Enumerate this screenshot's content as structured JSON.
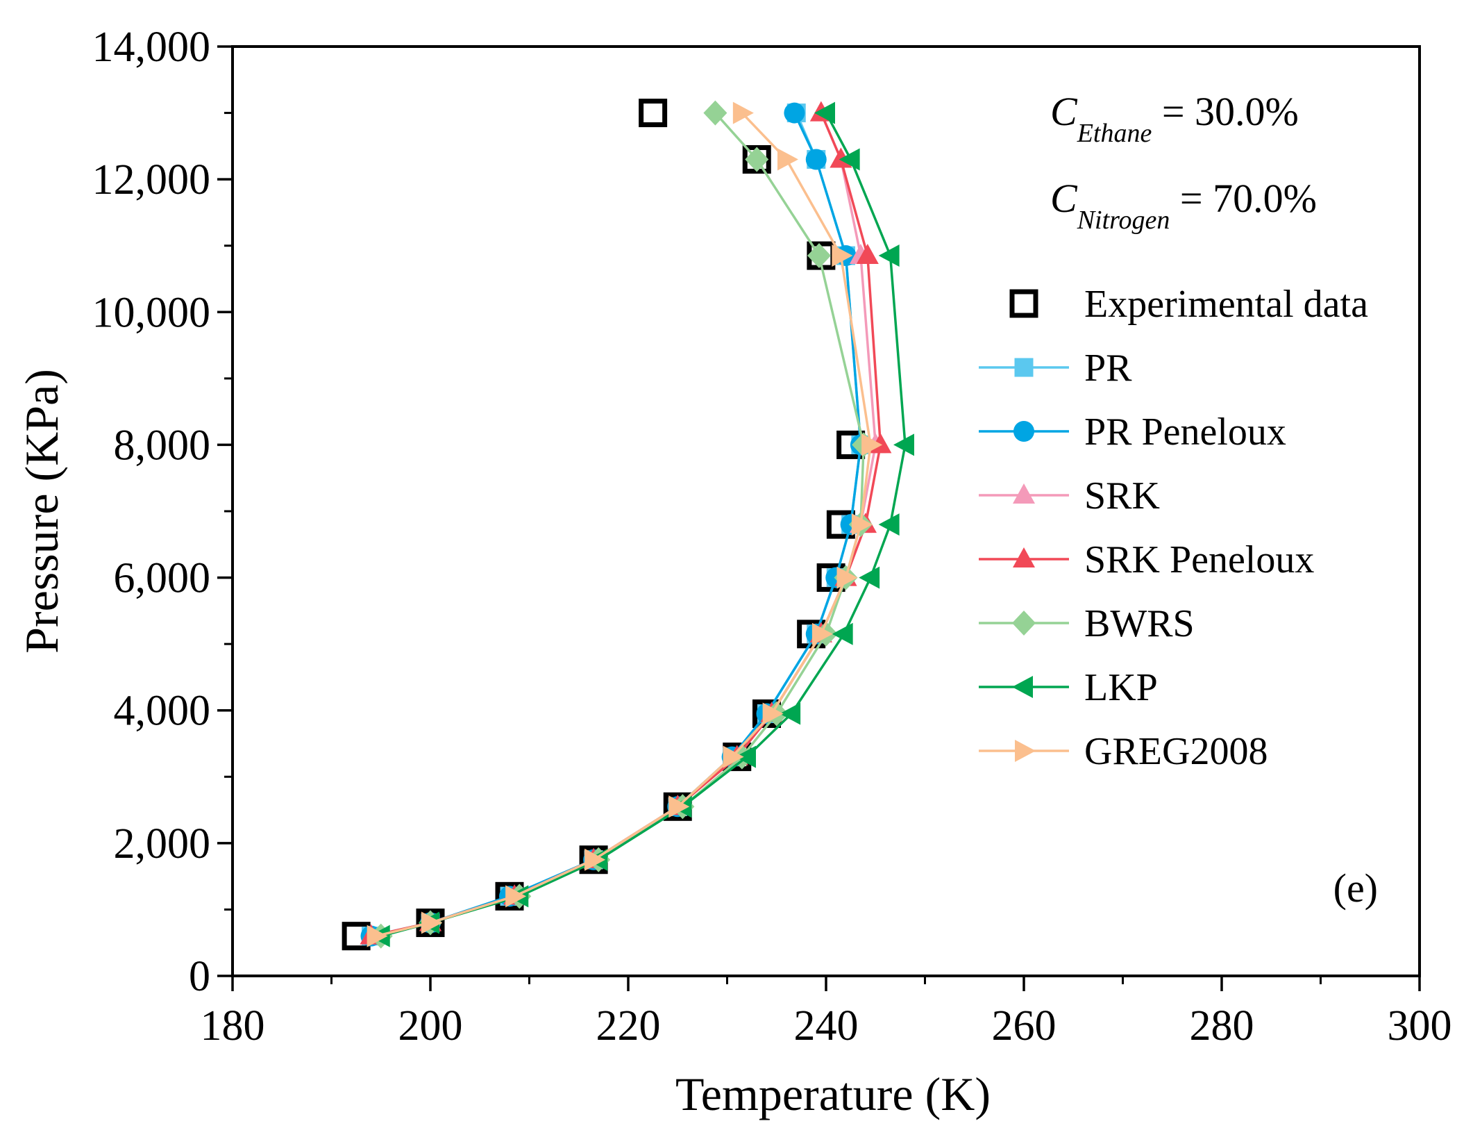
{
  "chart_data": {
    "type": "line",
    "title": "",
    "xlabel": "Temperature (K)",
    "ylabel": "Pressure (KPa)",
    "xlim": [
      180,
      300
    ],
    "ylim": [
      0,
      14000
    ],
    "x_ticks": [
      180,
      200,
      220,
      240,
      260,
      280,
      300
    ],
    "x_tick_labels": [
      "180",
      "200",
      "220",
      "240",
      "260",
      "280",
      "300"
    ],
    "y_ticks": [
      0,
      2000,
      4000,
      6000,
      8000,
      10000,
      12000,
      14000
    ],
    "y_tick_labels": [
      "0",
      "2,000",
      "4,000",
      "6,000",
      "8,000",
      "10,000",
      "12,000",
      "14,000"
    ],
    "grid": false,
    "legend_position": "right",
    "panel_label": "(e)",
    "annotations": [
      {
        "main": "C",
        "sub": "Ethane",
        "rest": " = 30.0%"
      },
      {
        "main": "C",
        "sub": "Nitrogen",
        "rest": " = 70.0%"
      }
    ],
    "series": [
      {
        "name": "Experimental data",
        "color": "#000000",
        "marker": "square-open",
        "line": false,
        "points": [
          [
            192.5,
            600
          ],
          [
            200,
            800
          ],
          [
            208,
            1200
          ],
          [
            216.5,
            1750
          ],
          [
            225,
            2550
          ],
          [
            231,
            3300
          ],
          [
            234,
            3950
          ],
          [
            238.5,
            5150
          ],
          [
            240.5,
            6000
          ],
          [
            241.5,
            6800
          ],
          [
            242.5,
            8000
          ],
          [
            239.5,
            10850
          ],
          [
            233,
            12300
          ],
          [
            222.5,
            13000
          ]
        ]
      },
      {
        "name": "PR",
        "color": "#5bc8ef",
        "marker": "square",
        "line": true,
        "points": [
          [
            194,
            600
          ],
          [
            200,
            800
          ],
          [
            208,
            1200
          ],
          [
            216.5,
            1750
          ],
          [
            225,
            2550
          ],
          [
            230.5,
            3300
          ],
          [
            234,
            3950
          ],
          [
            239,
            5150
          ],
          [
            241,
            6000
          ],
          [
            242.5,
            6800
          ],
          [
            243.5,
            8000
          ],
          [
            242,
            10850
          ],
          [
            239,
            12300
          ],
          [
            237,
            13000
          ]
        ]
      },
      {
        "name": "PR Peneloux",
        "color": "#00a5e3",
        "marker": "circle",
        "line": true,
        "points": [
          [
            194,
            600
          ],
          [
            200,
            800
          ],
          [
            208,
            1200
          ],
          [
            216.5,
            1750
          ],
          [
            225,
            2550
          ],
          [
            230.5,
            3300
          ],
          [
            234,
            3950
          ],
          [
            239,
            5150
          ],
          [
            241,
            6000
          ],
          [
            242.5,
            6800
          ],
          [
            243.5,
            8000
          ],
          [
            242,
            10850
          ],
          [
            239,
            12300
          ],
          [
            236.8,
            13000
          ]
        ]
      },
      {
        "name": "SRK",
        "color": "#f49ab9",
        "marker": "triangle-up",
        "line": true,
        "points": [
          [
            194,
            600
          ],
          [
            200,
            800
          ],
          [
            208.5,
            1200
          ],
          [
            216.5,
            1750
          ],
          [
            225,
            2550
          ],
          [
            231,
            3300
          ],
          [
            234.5,
            3950
          ],
          [
            239.5,
            5150
          ],
          [
            242,
            6000
          ],
          [
            243.5,
            6800
          ],
          [
            245,
            8000
          ],
          [
            243.5,
            10850
          ],
          [
            241.5,
            12300
          ],
          [
            239.5,
            13000
          ]
        ]
      },
      {
        "name": "SRK Peneloux",
        "color": "#f14957",
        "marker": "triangle-up",
        "line": true,
        "points": [
          [
            194,
            600
          ],
          [
            200,
            800
          ],
          [
            208.5,
            1200
          ],
          [
            216.5,
            1750
          ],
          [
            225,
            2550
          ],
          [
            231,
            3300
          ],
          [
            234.5,
            3950
          ],
          [
            239.5,
            5150
          ],
          [
            242,
            6000
          ],
          [
            244,
            6800
          ],
          [
            245.5,
            8000
          ],
          [
            244.2,
            10850
          ],
          [
            241.5,
            12300
          ],
          [
            239.5,
            13000
          ]
        ]
      },
      {
        "name": "BWRS",
        "color": "#95d295",
        "marker": "diamond",
        "line": true,
        "points": [
          [
            195,
            600
          ],
          [
            200,
            800
          ],
          [
            209,
            1200
          ],
          [
            217,
            1750
          ],
          [
            225.5,
            2550
          ],
          [
            231.5,
            3300
          ],
          [
            235,
            3950
          ],
          [
            240,
            5150
          ],
          [
            242,
            6000
          ],
          [
            243.5,
            6800
          ],
          [
            243.8,
            8000
          ],
          [
            239.3,
            10850
          ],
          [
            233,
            12300
          ],
          [
            228.8,
            13000
          ]
        ]
      },
      {
        "name": "LKP",
        "color": "#00a651",
        "marker": "triangle-left",
        "line": true,
        "points": [
          [
            195,
            600
          ],
          [
            200,
            800
          ],
          [
            209,
            1200
          ],
          [
            217,
            1750
          ],
          [
            225.5,
            2550
          ],
          [
            232,
            3300
          ],
          [
            236.5,
            3950
          ],
          [
            241.8,
            5150
          ],
          [
            244.5,
            6000
          ],
          [
            246.5,
            6800
          ],
          [
            248,
            8000
          ],
          [
            246.5,
            10850
          ],
          [
            242.5,
            12300
          ],
          [
            240,
            13000
          ]
        ]
      },
      {
        "name": "GREG2008",
        "color": "#fbbf8e",
        "marker": "triangle-right",
        "line": true,
        "points": [
          [
            194.5,
            600
          ],
          [
            200,
            800
          ],
          [
            208.5,
            1200
          ],
          [
            216.5,
            1750
          ],
          [
            225,
            2550
          ],
          [
            230.5,
            3300
          ],
          [
            234.5,
            3950
          ],
          [
            239.5,
            5150
          ],
          [
            242,
            6000
          ],
          [
            243.5,
            6800
          ],
          [
            244.5,
            8000
          ],
          [
            241.5,
            10850
          ],
          [
            236,
            12300
          ],
          [
            231.5,
            13000
          ]
        ]
      }
    ]
  }
}
